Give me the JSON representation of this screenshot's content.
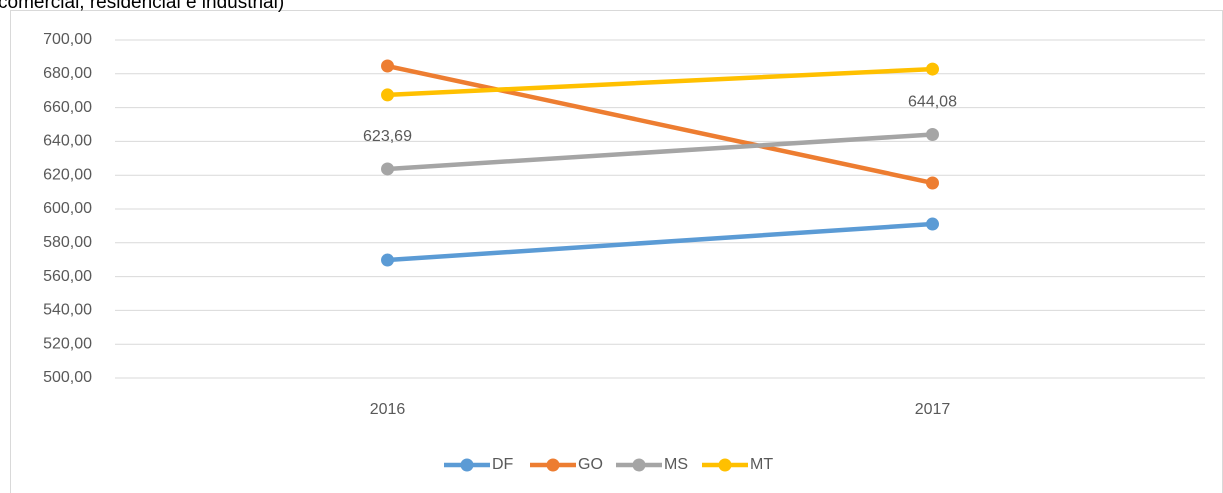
{
  "chart_data": {
    "type": "line",
    "title": "comercial, residencial e industrial)",
    "categories": [
      "2016",
      "2017"
    ],
    "series": [
      {
        "name": "DF",
        "color": "#5b9bd5",
        "values": [
          569.8,
          591.1
        ]
      },
      {
        "name": "GO",
        "color": "#ed7d31",
        "values": [
          684.6,
          615.4
        ]
      },
      {
        "name": "MS",
        "color": "#a5a5a5",
        "values": [
          623.69,
          644.08
        ],
        "value_labels": [
          "623,69",
          "644,08"
        ]
      },
      {
        "name": "MT",
        "color": "#ffc000",
        "values": [
          667.5,
          682.8
        ]
      }
    ],
    "ylim": [
      500,
      700
    ],
    "yticks": [
      {
        "value": 500,
        "label": "500,00"
      },
      {
        "value": 520,
        "label": "520,00"
      },
      {
        "value": 540,
        "label": "540,00"
      },
      {
        "value": 560,
        "label": "560,00"
      },
      {
        "value": 580,
        "label": "580,00"
      },
      {
        "value": 600,
        "label": "600,00"
      },
      {
        "value": 620,
        "label": "620,00"
      },
      {
        "value": 640,
        "label": "640,00"
      },
      {
        "value": 660,
        "label": "660,00"
      },
      {
        "value": 680,
        "label": "680,00"
      },
      {
        "value": 700,
        "label": "700,00"
      }
    ],
    "grid": true,
    "legend": "bottom"
  }
}
